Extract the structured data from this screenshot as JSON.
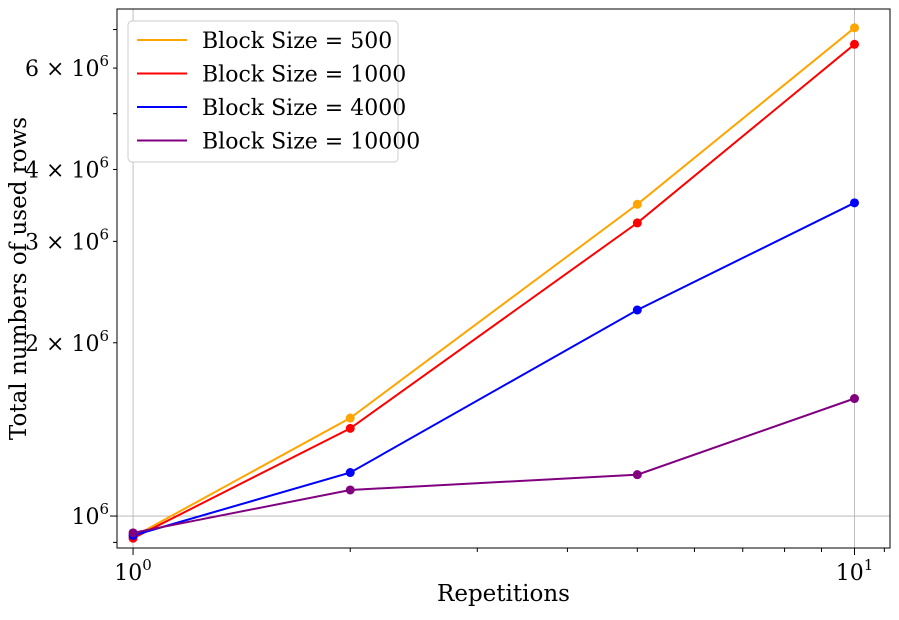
{
  "chart_data": {
    "type": "line",
    "title": "",
    "xlabel": "Repetitions",
    "ylabel": "Total numbers of used rows",
    "x_scale": "log",
    "y_scale": "log",
    "x": [
      1,
      2,
      5,
      10
    ],
    "xlim": [
      0.95,
      11.2
    ],
    "ylim": [
      880000,
      7600000
    ],
    "x_tick_labels": [
      {
        "value": 1,
        "base": "10",
        "exp": "0"
      },
      {
        "value": 10,
        "base": "10",
        "exp": "1"
      }
    ],
    "y_tick_labels": [
      {
        "value": 1000000,
        "mant": "",
        "base": "10",
        "exp": "6"
      },
      {
        "value": 2000000,
        "mant": "2 × ",
        "base": "10",
        "exp": "6"
      },
      {
        "value": 3000000,
        "mant": "3 × ",
        "base": "10",
        "exp": "6"
      },
      {
        "value": 4000000,
        "mant": "4 × ",
        "base": "10",
        "exp": "6"
      },
      {
        "value": 6000000,
        "mant": "6 × ",
        "base": "10",
        "exp": "6"
      }
    ],
    "grid": true,
    "legend_position": "top-left",
    "series": [
      {
        "name": "Block Size = 500",
        "color": "#ffa500",
        "values": [
          920000,
          1480000,
          3480000,
          7050000
        ]
      },
      {
        "name": "Block Size = 1000",
        "color": "#ff0000",
        "values": [
          915000,
          1420000,
          3230000,
          6600000
        ]
      },
      {
        "name": "Block Size = 4000",
        "color": "#0000ff",
        "values": [
          925000,
          1190000,
          2280000,
          3500000
        ]
      },
      {
        "name": "Block Size = 10000",
        "color": "#800080",
        "values": [
          935000,
          1110000,
          1180000,
          1600000
        ]
      }
    ]
  }
}
